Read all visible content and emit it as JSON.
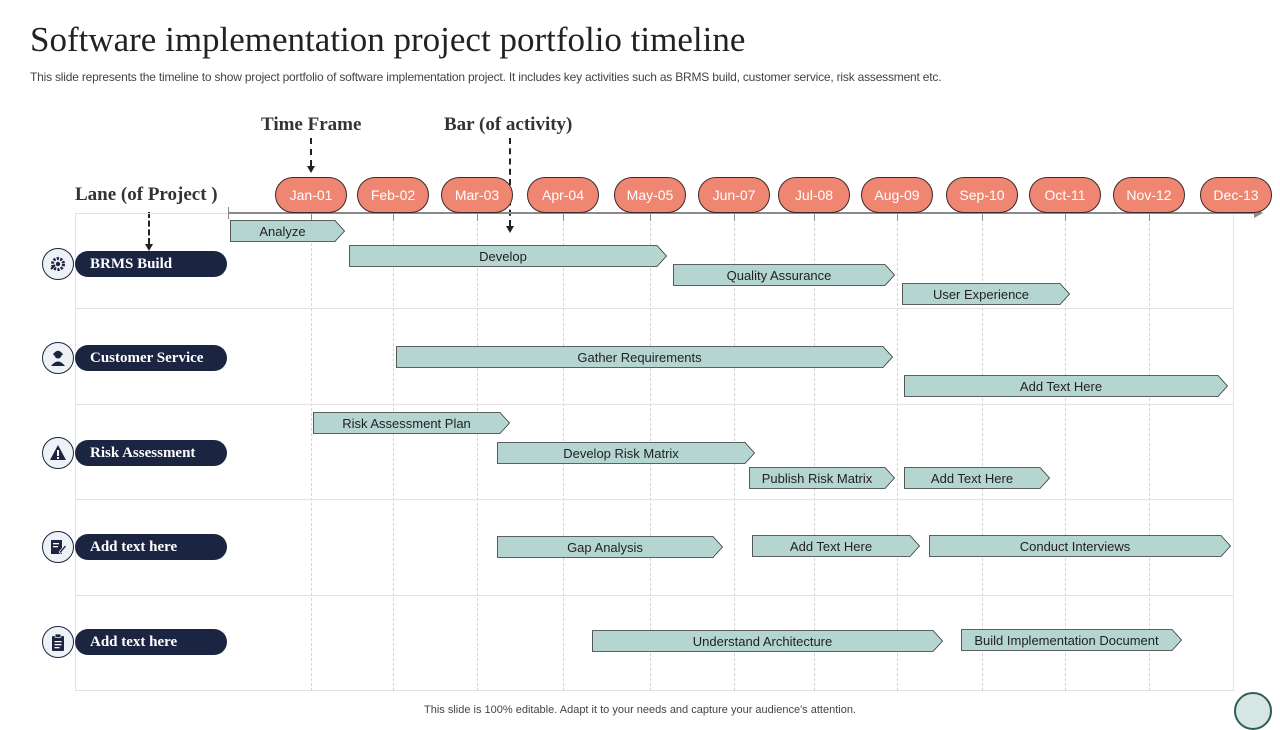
{
  "header": {
    "title": "Software implementation project portfolio timeline",
    "subtitle": "This slide represents the timeline to show project portfolio of software implementation project. It includes key activities such as BRMS build, customer service, risk assessment etc."
  },
  "callouts": {
    "time_frame": "Time Frame",
    "bar_activity": "Bar (of  activity)",
    "lane_project": "Lane (of  Project )"
  },
  "timeline": {
    "dates": [
      "Jan-01",
      "Feb-02",
      "Mar-03",
      "Apr-04",
      "May-05",
      "Jun-07",
      "Jul-08",
      "Aug-09",
      "Sep-10",
      "Oct-11",
      "Nov-12",
      "Dec-13"
    ]
  },
  "lanes": [
    {
      "label": "BRMS Build",
      "icon": "gear-settings-icon"
    },
    {
      "label": "Customer Service",
      "icon": "customer-support-icon"
    },
    {
      "label": "Risk Assessment",
      "icon": "risk-warning-icon"
    },
    {
      "label": "Add text here",
      "icon": "document-edit-icon"
    },
    {
      "label": "Add text here",
      "icon": "clipboard-icon"
    }
  ],
  "activities": [
    {
      "label": "Analyze",
      "lane": 0
    },
    {
      "label": "Develop",
      "lane": 0
    },
    {
      "label": "Quality Assurance",
      "lane": 0
    },
    {
      "label": "User Experience",
      "lane": 0
    },
    {
      "label": "Gather Requirements",
      "lane": 1
    },
    {
      "label": "Add Text Here",
      "lane": 1
    },
    {
      "label": "Risk Assessment Plan",
      "lane": 2
    },
    {
      "label": "Develop  Risk Matrix",
      "lane": 2
    },
    {
      "label": "Publish Risk Matrix",
      "lane": 2
    },
    {
      "label": "Add Text Here",
      "lane": 2
    },
    {
      "label": "Gap Analysis",
      "lane": 3
    },
    {
      "label": "Add Text Here",
      "lane": 3
    },
    {
      "label": "Conduct Interviews",
      "lane": 3
    },
    {
      "label": "Understand Architecture",
      "lane": 4
    },
    {
      "label": "Build Implementation Document",
      "lane": 4
    }
  ],
  "colors": {
    "date_pill": "#ef8672",
    "lane_pill": "#1b2440",
    "bar_fill": "#b5d5d0",
    "bar_stroke": "#333333"
  },
  "footer": {
    "note": "This slide is 100% editable.  Adapt it to your needs and capture your audience's attention."
  }
}
